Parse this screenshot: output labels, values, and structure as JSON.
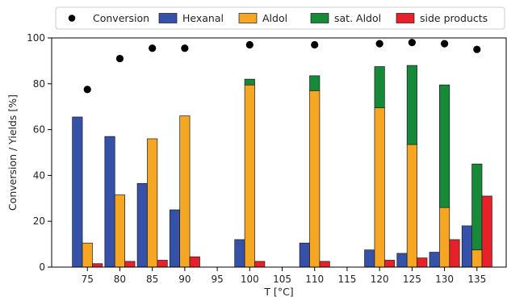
{
  "chart_data": {
    "type": "bar",
    "xlabel": "T [°C]",
    "ylabel": "Conversion / Yields [%]",
    "ylim": [
      0,
      100
    ],
    "yticks": [
      0,
      20,
      40,
      60,
      80,
      100
    ],
    "xticks": [
      "75",
      "80",
      "85",
      "90",
      "95",
      "100",
      "105",
      "110",
      "115",
      "120",
      "125",
      "130",
      "135"
    ],
    "legend_position": "top-right",
    "legend": [
      {
        "key": "conversion",
        "label": "Conversion",
        "marker": "dot",
        "color": "#000000"
      },
      {
        "key": "hexanal",
        "label": "Hexanal",
        "marker": "patch",
        "color": "#3651a8"
      },
      {
        "key": "aldol",
        "label": "Aldol",
        "marker": "patch",
        "color": "#f5a623"
      },
      {
        "key": "sat_aldol",
        "label": "sat. Aldol",
        "marker": "patch",
        "color": "#178a3a"
      },
      {
        "key": "side_products",
        "label": "side products",
        "marker": "patch",
        "color": "#e8202a"
      }
    ],
    "temperatures": [
      75,
      80,
      85,
      90,
      100,
      110,
      120,
      125,
      130,
      135
    ],
    "conversion": [
      77.5,
      91,
      95.5,
      95.5,
      97,
      97,
      97.5,
      98,
      97.5,
      95
    ],
    "hexanal": [
      65.5,
      57,
      36.5,
      25,
      12,
      10.5,
      7.5,
      6,
      6.5,
      18
    ],
    "aldol": [
      10.5,
      31.5,
      56,
      66,
      79.5,
      77,
      69.5,
      53.5,
      26,
      7.5
    ],
    "sat_aldol": [
      0,
      0,
      0,
      0,
      2.5,
      6.5,
      18,
      34.5,
      53.5,
      37.5
    ],
    "side_products": [
      1.5,
      2.5,
      3,
      4.5,
      2.5,
      2.5,
      3,
      4,
      12,
      31
    ]
  }
}
